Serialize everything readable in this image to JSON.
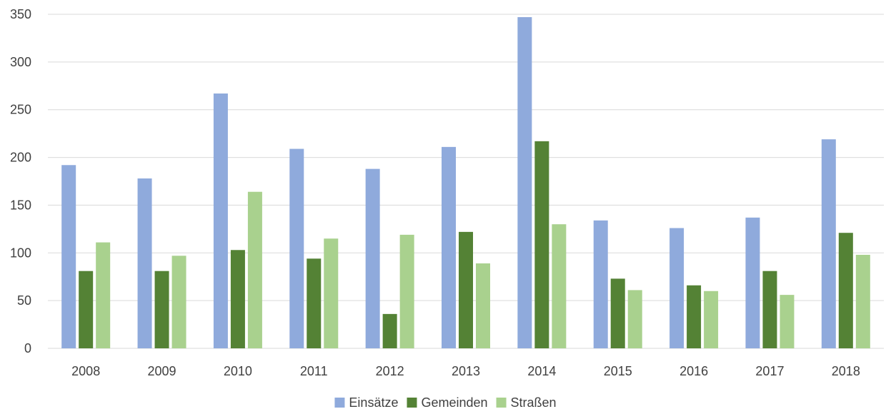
{
  "chart_data": {
    "type": "bar",
    "categories": [
      "2008",
      "2009",
      "2010",
      "2011",
      "2012",
      "2013",
      "2014",
      "2015",
      "2016",
      "2017",
      "2018"
    ],
    "series": [
      {
        "name": "Einsätze",
        "color": "#8faadc",
        "values": [
          192,
          178,
          267,
          209,
          188,
          211,
          347,
          134,
          126,
          137,
          219
        ]
      },
      {
        "name": "Gemeinden",
        "color": "#548235",
        "values": [
          81,
          81,
          103,
          94,
          36,
          122,
          217,
          73,
          66,
          81,
          121
        ]
      },
      {
        "name": "Straßen",
        "color": "#a9d18e",
        "values": [
          111,
          97,
          164,
          115,
          119,
          89,
          130,
          61,
          60,
          56,
          98
        ]
      }
    ],
    "yticks": [
      "0",
      "50",
      "100",
      "150",
      "200",
      "250",
      "300",
      "350"
    ],
    "ylim": [
      0,
      350
    ],
    "grid": true,
    "gridColor": "#d9d9d9",
    "legend_position": "bottom-center"
  }
}
